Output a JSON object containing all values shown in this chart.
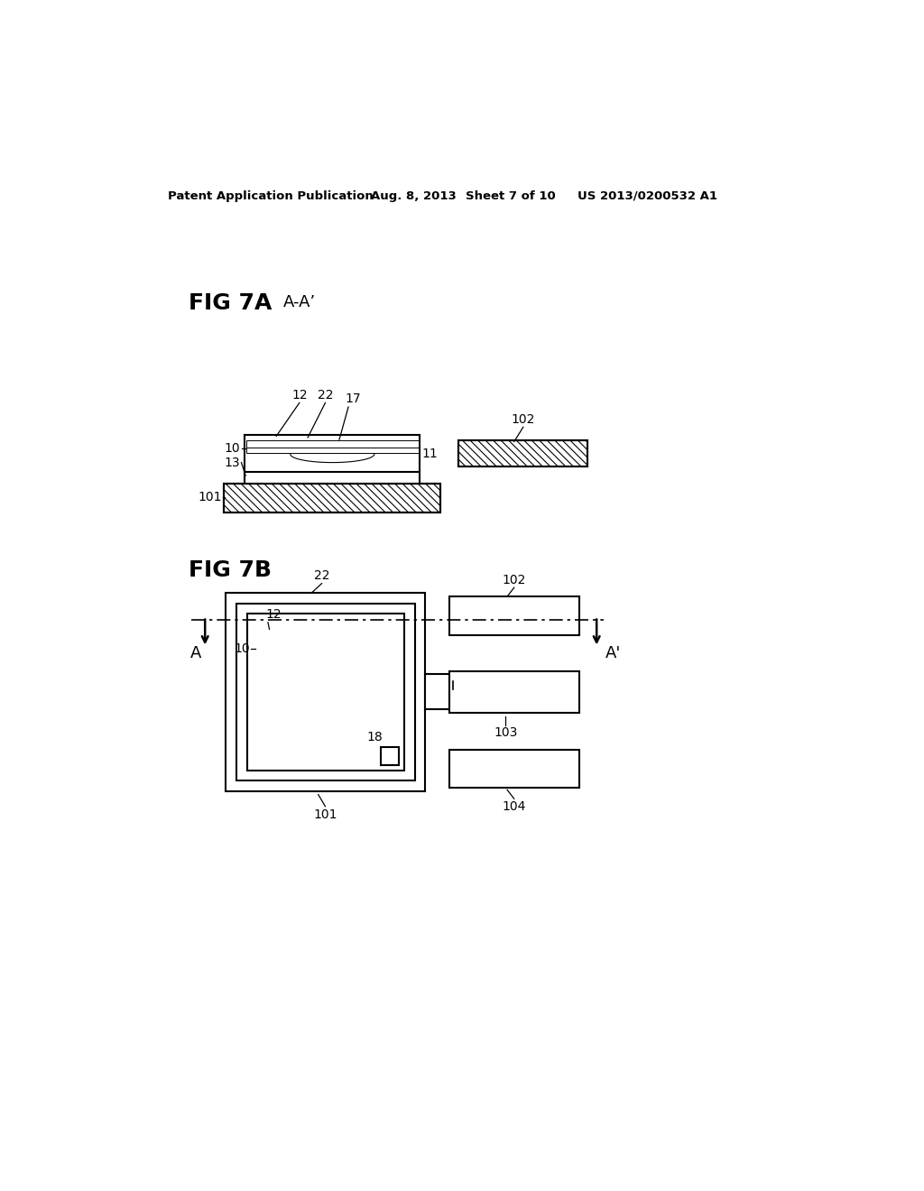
{
  "bg_color": "#ffffff",
  "header_text1": "Patent Application Publication",
  "header_text2": "Aug. 8, 2013",
  "header_text3": "Sheet 7 of 10",
  "header_text4": "US 2013/0200532 A1",
  "fig7a_label": "FIG 7A",
  "fig7a_sublabel": "A-A’",
  "fig7b_label": "FIG 7B",
  "line_color": "#000000"
}
